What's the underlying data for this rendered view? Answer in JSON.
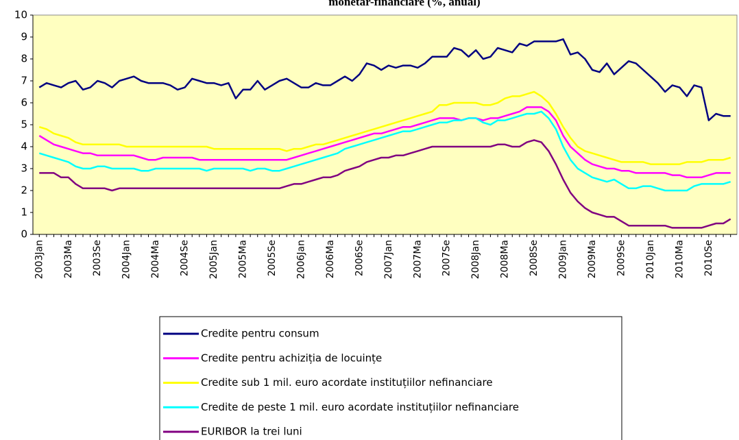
{
  "chart_data": {
    "type": "line",
    "title": "monetar-financiare (%, anual)",
    "categories": [
      "2003Jan",
      null,
      null,
      null,
      "2003Ma",
      null,
      null,
      null,
      "2003Se",
      null,
      null,
      null,
      "2004Jan",
      null,
      null,
      null,
      "2004Ma",
      null,
      null,
      null,
      "2004Se",
      null,
      null,
      null,
      "2005Jan",
      null,
      null,
      null,
      "2005Ma",
      null,
      null,
      null,
      "2005Se",
      null,
      null,
      null,
      "2006Jan",
      null,
      null,
      null,
      "2006Ma",
      null,
      null,
      null,
      "2006Se",
      null,
      null,
      null,
      "2007Jan",
      null,
      null,
      null,
      "2007Ma",
      null,
      null,
      null,
      "2007Se",
      null,
      null,
      null,
      "2008Jan",
      null,
      null,
      null,
      "2008Ma",
      null,
      null,
      null,
      "2008Se",
      null,
      null,
      null,
      "2009Jan",
      null,
      null,
      null,
      "2009Ma",
      null,
      null,
      null,
      "2009Se",
      null,
      null,
      null,
      "2010Jan",
      null,
      null,
      null,
      "2010Ma",
      null,
      null,
      null,
      "2010Se",
      null,
      null,
      null
    ],
    "series": [
      {
        "name": "Credite pentru consum",
        "color": "#000080",
        "values": [
          6.7,
          6.9,
          6.8,
          6.7,
          6.9,
          7.0,
          6.6,
          6.7,
          7.0,
          6.9,
          6.7,
          7.0,
          7.1,
          7.2,
          7.0,
          6.9,
          6.9,
          6.9,
          6.8,
          6.6,
          6.7,
          7.1,
          7.0,
          6.9,
          6.9,
          6.8,
          6.9,
          6.2,
          6.6,
          6.6,
          7.0,
          6.6,
          6.8,
          7.0,
          7.1,
          6.9,
          6.7,
          6.7,
          6.9,
          6.8,
          6.8,
          7.0,
          7.2,
          7.0,
          7.3,
          7.8,
          7.7,
          7.5,
          7.7,
          7.6,
          7.7,
          7.7,
          7.6,
          7.8,
          8.1,
          8.1,
          8.1,
          8.5,
          8.4,
          8.1,
          8.4,
          8.0,
          8.1,
          8.5,
          8.4,
          8.3,
          8.7,
          8.6,
          8.8,
          8.8,
          8.8,
          8.8,
          8.9,
          8.2,
          8.3,
          8.0,
          7.5,
          7.4,
          7.8,
          7.3,
          7.6,
          7.9,
          7.8,
          7.5,
          7.2,
          6.9,
          6.5,
          6.8,
          6.7,
          6.3,
          6.8,
          6.7,
          5.2,
          5.5,
          5.4,
          5.4
        ]
      },
      {
        "name": "Credite pentru achiziția de locuințe",
        "color": "#ff00ff",
        "values": [
          4.5,
          4.3,
          4.1,
          4.0,
          3.9,
          3.8,
          3.7,
          3.7,
          3.6,
          3.6,
          3.6,
          3.6,
          3.6,
          3.6,
          3.5,
          3.4,
          3.4,
          3.5,
          3.5,
          3.5,
          3.5,
          3.5,
          3.4,
          3.4,
          3.4,
          3.4,
          3.4,
          3.4,
          3.4,
          3.4,
          3.4,
          3.4,
          3.4,
          3.4,
          3.4,
          3.5,
          3.6,
          3.7,
          3.8,
          3.9,
          4.0,
          4.1,
          4.2,
          4.3,
          4.4,
          4.5,
          4.6,
          4.6,
          4.7,
          4.8,
          4.9,
          4.9,
          5.0,
          5.1,
          5.2,
          5.3,
          5.3,
          5.3,
          5.2,
          5.3,
          5.3,
          5.2,
          5.3,
          5.3,
          5.4,
          5.5,
          5.6,
          5.8,
          5.8,
          5.8,
          5.6,
          5.2,
          4.5,
          4.0,
          3.7,
          3.4,
          3.2,
          3.1,
          3.0,
          3.0,
          2.9,
          2.9,
          2.8,
          2.8,
          2.8,
          2.8,
          2.8,
          2.7,
          2.7,
          2.6,
          2.6,
          2.6,
          2.7,
          2.8,
          2.8,
          2.8
        ]
      },
      {
        "name": "Credite sub 1 mil. euro acordate instituțiilor nefinanciare",
        "color": "#ffff00",
        "values": [
          4.9,
          4.8,
          4.6,
          4.5,
          4.4,
          4.2,
          4.1,
          4.1,
          4.1,
          4.1,
          4.1,
          4.1,
          4.0,
          4.0,
          4.0,
          4.0,
          4.0,
          4.0,
          4.0,
          4.0,
          4.0,
          4.0,
          4.0,
          4.0,
          3.9,
          3.9,
          3.9,
          3.9,
          3.9,
          3.9,
          3.9,
          3.9,
          3.9,
          3.9,
          3.8,
          3.9,
          3.9,
          4.0,
          4.1,
          4.1,
          4.2,
          4.3,
          4.4,
          4.5,
          4.6,
          4.7,
          4.8,
          4.9,
          5.0,
          5.1,
          5.2,
          5.3,
          5.4,
          5.5,
          5.6,
          5.9,
          5.9,
          6.0,
          6.0,
          6.0,
          6.0,
          5.9,
          5.9,
          6.0,
          6.2,
          6.3,
          6.3,
          6.4,
          6.5,
          6.3,
          6.0,
          5.5,
          4.9,
          4.4,
          4.0,
          3.8,
          3.7,
          3.6,
          3.5,
          3.4,
          3.3,
          3.3,
          3.3,
          3.3,
          3.2,
          3.2,
          3.2,
          3.2,
          3.2,
          3.3,
          3.3,
          3.3,
          3.4,
          3.4,
          3.4,
          3.5
        ]
      },
      {
        "name": "Credite de peste 1 mil. euro acordate instituțiilor nefinanciare",
        "color": "#00ffff",
        "values": [
          3.7,
          3.6,
          3.5,
          3.4,
          3.3,
          3.1,
          3.0,
          3.0,
          3.1,
          3.1,
          3.0,
          3.0,
          3.0,
          3.0,
          2.9,
          2.9,
          3.0,
          3.0,
          3.0,
          3.0,
          3.0,
          3.0,
          3.0,
          2.9,
          3.0,
          3.0,
          3.0,
          3.0,
          3.0,
          2.9,
          3.0,
          3.0,
          2.9,
          2.9,
          3.0,
          3.1,
          3.2,
          3.3,
          3.4,
          3.5,
          3.6,
          3.7,
          3.9,
          4.0,
          4.1,
          4.2,
          4.3,
          4.4,
          4.5,
          4.6,
          4.7,
          4.7,
          4.8,
          4.9,
          5.0,
          5.1,
          5.1,
          5.2,
          5.2,
          5.3,
          5.3,
          5.1,
          5.0,
          5.2,
          5.2,
          5.3,
          5.4,
          5.5,
          5.5,
          5.6,
          5.3,
          4.8,
          4.0,
          3.4,
          3.0,
          2.8,
          2.6,
          2.5,
          2.4,
          2.5,
          2.3,
          2.1,
          2.1,
          2.2,
          2.2,
          2.1,
          2.0,
          2.0,
          2.0,
          2.0,
          2.2,
          2.3,
          2.3,
          2.3,
          2.3,
          2.4
        ]
      },
      {
        "name": "EURIBOR la trei luni",
        "color": "#800080",
        "values": [
          2.8,
          2.8,
          2.8,
          2.6,
          2.6,
          2.3,
          2.1,
          2.1,
          2.1,
          2.1,
          2.0,
          2.1,
          2.1,
          2.1,
          2.1,
          2.1,
          2.1,
          2.1,
          2.1,
          2.1,
          2.1,
          2.1,
          2.1,
          2.1,
          2.1,
          2.1,
          2.1,
          2.1,
          2.1,
          2.1,
          2.1,
          2.1,
          2.1,
          2.1,
          2.2,
          2.3,
          2.3,
          2.4,
          2.5,
          2.6,
          2.6,
          2.7,
          2.9,
          3.0,
          3.1,
          3.3,
          3.4,
          3.5,
          3.5,
          3.6,
          3.6,
          3.7,
          3.8,
          3.9,
          4.0,
          4.0,
          4.0,
          4.0,
          4.0,
          4.0,
          4.0,
          4.0,
          4.0,
          4.1,
          4.1,
          4.0,
          4.0,
          4.2,
          4.3,
          4.2,
          3.8,
          3.2,
          2.5,
          1.9,
          1.5,
          1.2,
          1.0,
          0.9,
          0.8,
          0.8,
          0.6,
          0.4,
          0.4,
          0.4,
          0.4,
          0.4,
          0.4,
          0.3,
          0.3,
          0.3,
          0.3,
          0.3,
          0.4,
          0.5,
          0.5,
          0.7
        ]
      }
    ],
    "ylim": [
      0,
      10
    ],
    "yticks": [
      0,
      1,
      2,
      3,
      4,
      5,
      6,
      7,
      8,
      9,
      10
    ],
    "grid": false,
    "legend": "bottom"
  }
}
